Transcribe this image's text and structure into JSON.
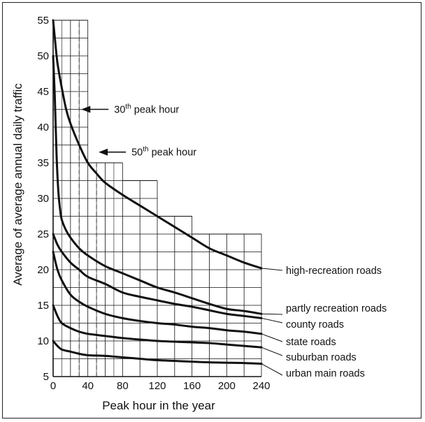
{
  "chart_data": {
    "type": "line",
    "xlabel": "Peak hour in the year",
    "ylabel": "Average of average annual daily traffic",
    "xlim": [
      0,
      240
    ],
    "ylim": [
      5,
      55
    ],
    "x_ticks": [
      0,
      40,
      80,
      120,
      160,
      200,
      240
    ],
    "y_ticks": [
      5,
      10,
      15,
      20,
      25,
      30,
      35,
      40,
      45,
      50,
      55
    ],
    "grid": true,
    "series": [
      {
        "name": "high-recreation roads",
        "points": [
          [
            0,
            55
          ],
          [
            2,
            52.5
          ],
          [
            5,
            49
          ],
          [
            10,
            45.5
          ],
          [
            15,
            42.5
          ],
          [
            20,
            40.5
          ],
          [
            30,
            37.5
          ],
          [
            40,
            35
          ],
          [
            50,
            33.5
          ],
          [
            60,
            32.2
          ],
          [
            80,
            30.5
          ],
          [
            100,
            29
          ],
          [
            120,
            27.5
          ],
          [
            140,
            26
          ],
          [
            160,
            24.5
          ],
          [
            180,
            23
          ],
          [
            200,
            22
          ],
          [
            220,
            21
          ],
          [
            240,
            20.2
          ]
        ]
      },
      {
        "name": "partly recreation roads",
        "points": [
          [
            0,
            50
          ],
          [
            2,
            44
          ],
          [
            4,
            36
          ],
          [
            6,
            31
          ],
          [
            8,
            28.5
          ],
          [
            10,
            27
          ],
          [
            15,
            25.5
          ],
          [
            20,
            24.5
          ],
          [
            30,
            23
          ],
          [
            40,
            22
          ],
          [
            60,
            20.5
          ],
          [
            80,
            19.5
          ],
          [
            100,
            18.5
          ],
          [
            120,
            17.5
          ],
          [
            140,
            16.8
          ],
          [
            160,
            16
          ],
          [
            180,
            15.2
          ],
          [
            200,
            14.5
          ],
          [
            220,
            14.2
          ],
          [
            240,
            13.8
          ]
        ]
      },
      {
        "name": "county roads",
        "points": [
          [
            0,
            25
          ],
          [
            5,
            23.5
          ],
          [
            10,
            22.5
          ],
          [
            20,
            21
          ],
          [
            30,
            20
          ],
          [
            40,
            19
          ],
          [
            60,
            18
          ],
          [
            80,
            16.8
          ],
          [
            100,
            16.2
          ],
          [
            120,
            15.7
          ],
          [
            140,
            15.2
          ],
          [
            160,
            14.8
          ],
          [
            180,
            14.3
          ],
          [
            200,
            13.8
          ],
          [
            220,
            13.5
          ],
          [
            240,
            13.2
          ]
        ]
      },
      {
        "name": "state roads",
        "points": [
          [
            0,
            22.5
          ],
          [
            5,
            20
          ],
          [
            10,
            18.5
          ],
          [
            20,
            16.5
          ],
          [
            30,
            15.5
          ],
          [
            40,
            14.8
          ],
          [
            60,
            13.8
          ],
          [
            80,
            13.2
          ],
          [
            100,
            12.8
          ],
          [
            120,
            12.5
          ],
          [
            140,
            12.3
          ],
          [
            160,
            12
          ],
          [
            180,
            11.8
          ],
          [
            200,
            11.5
          ],
          [
            220,
            11.3
          ],
          [
            240,
            11
          ]
        ]
      },
      {
        "name": "suburban roads",
        "points": [
          [
            0,
            15
          ],
          [
            5,
            13.5
          ],
          [
            10,
            12.5
          ],
          [
            20,
            11.8
          ],
          [
            30,
            11.3
          ],
          [
            40,
            11
          ],
          [
            60,
            10.7
          ],
          [
            80,
            10.4
          ],
          [
            100,
            10.2
          ],
          [
            120,
            10
          ],
          [
            140,
            9.9
          ],
          [
            160,
            9.8
          ],
          [
            180,
            9.7
          ],
          [
            200,
            9.5
          ],
          [
            220,
            9.3
          ],
          [
            240,
            9.1
          ]
        ]
      },
      {
        "name": "urban main roads",
        "points": [
          [
            0,
            10
          ],
          [
            5,
            9.3
          ],
          [
            10,
            8.8
          ],
          [
            20,
            8.5
          ],
          [
            30,
            8.2
          ],
          [
            40,
            8
          ],
          [
            60,
            7.9
          ],
          [
            80,
            7.7
          ],
          [
            100,
            7.5
          ],
          [
            120,
            7.3
          ],
          [
            140,
            7.2
          ],
          [
            160,
            7.1
          ],
          [
            180,
            7
          ],
          [
            200,
            6.95
          ],
          [
            220,
            6.9
          ],
          [
            240,
            6.8
          ]
        ]
      }
    ],
    "annotations": [
      {
        "text": "30",
        "sup": "th",
        "rest": " peak hour",
        "x": 30,
        "y": 42.5
      },
      {
        "text": "50",
        "sup": "th",
        "rest": " peak hour",
        "x": 50,
        "y": 36.5
      }
    ],
    "step_grid": [
      {
        "x0": 0,
        "x1": 40,
        "top": 55
      },
      {
        "x0": 40,
        "x1": 80,
        "top": 35
      },
      {
        "x0": 80,
        "x1": 120,
        "top": 32.5
      },
      {
        "x0": 120,
        "x1": 160,
        "top": 27.5
      },
      {
        "x0": 160,
        "x1": 240,
        "top": 25
      }
    ],
    "colors": {
      "line": "#111111",
      "grid": "#111111",
      "dash": "#444444"
    }
  }
}
